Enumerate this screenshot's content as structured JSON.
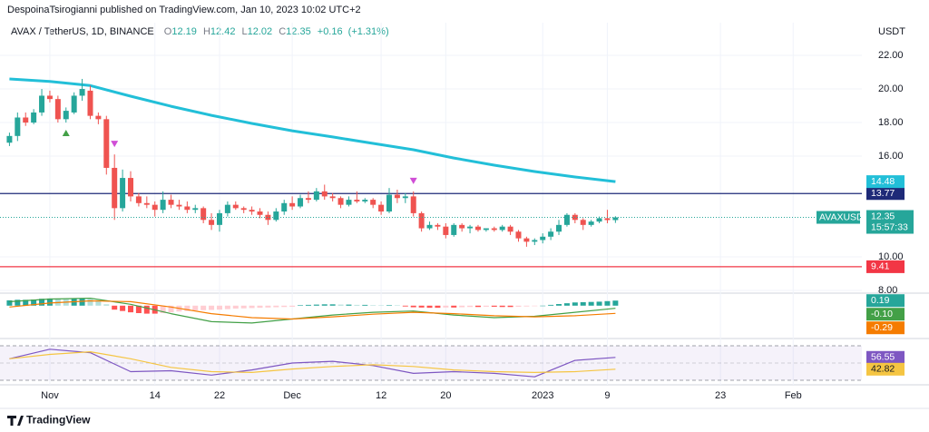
{
  "header": {
    "publisher": "DespoinaTsirogianni published on TradingView.com, Jan 10, 2023 10:02 UTC+2",
    "symbol": "AVAX / TetherUS, 1D, BINANCE",
    "o": "O",
    "h": "H",
    "l": "L",
    "c": "C",
    "change": {
      "value": 0.16,
      "label": "+0.16"
    },
    "change_pct": {
      "value": 1.31,
      "label": "(+1.31%)"
    }
  },
  "footer": {
    "brand": "TradingView"
  },
  "chart_data": {
    "type": "candlestick",
    "currency": "USDT",
    "symbol_tag": "AVAXUSDT",
    "countdown": "15:57:33",
    "colors": {
      "up": "#26a69a",
      "down": "#ef5350"
    },
    "candles": [
      [
        16.8,
        17.4,
        16.6,
        17.2
      ],
      [
        17.2,
        18.6,
        16.9,
        18.3
      ],
      [
        18.3,
        18.6,
        17.8,
        18.0
      ],
      [
        18.0,
        18.8,
        17.9,
        18.6
      ],
      [
        18.6,
        20.0,
        18.4,
        19.6
      ],
      [
        19.6,
        19.9,
        19.2,
        19.4
      ],
      [
        19.4,
        19.6,
        18.0,
        18.2
      ],
      [
        18.2,
        18.9,
        18.0,
        18.7
      ],
      [
        18.6,
        19.8,
        18.5,
        19.6
      ],
      [
        19.6,
        20.6,
        19.3,
        20.0
      ],
      [
        19.9,
        20.2,
        18.2,
        18.4
      ],
      [
        18.4,
        18.6,
        17.9,
        18.2
      ],
      [
        18.2,
        18.4,
        14.9,
        15.3
      ],
      [
        15.3,
        16.1,
        12.2,
        12.9
      ],
      [
        12.9,
        15.2,
        12.7,
        14.7
      ],
      [
        14.7,
        15.1,
        13.3,
        13.6
      ],
      [
        13.6,
        13.8,
        13.0,
        13.2
      ],
      [
        13.2,
        13.6,
        12.9,
        13.1
      ],
      [
        13.1,
        13.3,
        12.4,
        12.8
      ],
      [
        12.8,
        13.9,
        12.6,
        13.4
      ],
      [
        13.4,
        13.7,
        12.9,
        13.1
      ],
      [
        13.1,
        13.4,
        12.8,
        13.0
      ],
      [
        13.0,
        13.3,
        12.6,
        12.8
      ],
      [
        12.8,
        13.1,
        12.6,
        12.9
      ],
      [
        12.9,
        13.0,
        12.0,
        12.2
      ],
      [
        12.2,
        12.6,
        11.6,
        11.9
      ],
      [
        11.9,
        12.8,
        11.5,
        12.6
      ],
      [
        12.6,
        13.3,
        12.4,
        13.1
      ],
      [
        13.1,
        13.3,
        12.8,
        12.9
      ],
      [
        12.9,
        13.0,
        12.6,
        12.8
      ],
      [
        12.8,
        13.0,
        12.5,
        12.7
      ],
      [
        12.7,
        12.9,
        12.3,
        12.5
      ],
      [
        12.5,
        12.7,
        11.9,
        12.2
      ],
      [
        12.2,
        12.9,
        12.1,
        12.7
      ],
      [
        12.7,
        13.4,
        12.5,
        13.2
      ],
      [
        13.2,
        13.6,
        12.8,
        13.0
      ],
      [
        13.0,
        13.7,
        12.9,
        13.5
      ],
      [
        13.5,
        13.9,
        13.2,
        13.4
      ],
      [
        13.4,
        14.1,
        13.3,
        13.9
      ],
      [
        13.9,
        14.3,
        13.4,
        13.6
      ],
      [
        13.6,
        13.8,
        13.3,
        13.5
      ],
      [
        13.5,
        13.6,
        12.9,
        13.1
      ],
      [
        13.1,
        13.6,
        13.0,
        13.4
      ],
      [
        13.4,
        13.9,
        13.2,
        13.3
      ],
      [
        13.3,
        13.5,
        13.2,
        13.4
      ],
      [
        13.4,
        13.5,
        12.9,
        13.1
      ],
      [
        13.1,
        13.3,
        12.5,
        12.7
      ],
      [
        12.7,
        14.1,
        12.6,
        13.7
      ],
      [
        13.7,
        14.0,
        13.2,
        13.5
      ],
      [
        13.5,
        13.8,
        13.2,
        13.6
      ],
      [
        13.6,
        13.9,
        12.4,
        12.6
      ],
      [
        12.6,
        12.7,
        11.5,
        11.7
      ],
      [
        11.7,
        12.1,
        11.6,
        11.9
      ],
      [
        11.9,
        12.0,
        11.6,
        11.8
      ],
      [
        11.8,
        12.0,
        11.1,
        11.3
      ],
      [
        11.3,
        12.0,
        11.2,
        11.9
      ],
      [
        11.9,
        12.0,
        11.5,
        11.7
      ],
      [
        11.7,
        11.9,
        11.4,
        11.8
      ],
      [
        11.8,
        11.9,
        11.5,
        11.6
      ],
      [
        11.6,
        11.7,
        11.5,
        11.7
      ],
      [
        11.7,
        11.8,
        11.5,
        11.6
      ],
      [
        11.6,
        11.9,
        11.5,
        11.8
      ],
      [
        11.8,
        11.9,
        11.3,
        11.5
      ],
      [
        11.5,
        11.6,
        10.9,
        11.1
      ],
      [
        11.1,
        11.2,
        10.6,
        10.9
      ],
      [
        10.9,
        11.1,
        10.7,
        11.0
      ],
      [
        11.0,
        11.4,
        10.8,
        11.2
      ],
      [
        11.2,
        11.7,
        11.0,
        11.5
      ],
      [
        11.5,
        12.2,
        11.3,
        11.9
      ],
      [
        11.9,
        12.6,
        11.8,
        12.5
      ],
      [
        12.5,
        12.6,
        12.0,
        12.2
      ],
      [
        12.2,
        12.3,
        11.6,
        11.9
      ],
      [
        11.9,
        12.2,
        11.8,
        12.1
      ],
      [
        12.1,
        12.4,
        12.0,
        12.3
      ],
      [
        12.3,
        12.8,
        12.0,
        12.19
      ],
      [
        12.19,
        12.42,
        12.02,
        12.35
      ]
    ],
    "xlim": [
      -1.17,
      105.5
    ],
    "xticks": [
      {
        "value": 5,
        "label": "Nov"
      },
      {
        "value": 18,
        "label": "14"
      },
      {
        "value": 26,
        "label": "22"
      },
      {
        "value": 35,
        "label": "Dec"
      },
      {
        "value": 46,
        "label": "12"
      },
      {
        "value": 54,
        "label": "20"
      },
      {
        "value": 66,
        "label": "2023"
      },
      {
        "value": 74,
        "label": "9"
      },
      {
        "value": 88,
        "label": "23"
      },
      {
        "value": 97,
        "label": "Feb"
      }
    ],
    "ylim": [
      7.89,
      23.95
    ],
    "yticks": [
      {
        "value": 22,
        "label": "22.00"
      },
      {
        "value": 20,
        "label": "20.00"
      },
      {
        "value": 18,
        "label": "18.00"
      },
      {
        "value": 16,
        "label": "16.00"
      },
      {
        "value": 10,
        "label": "10.00"
      },
      {
        "value": 8,
        "label": "8.00"
      }
    ],
    "grid": true,
    "moving_average": {
      "color": "#22bfd8",
      "x": [
        0,
        5,
        10,
        15,
        20,
        25,
        30,
        35,
        40,
        45,
        50,
        55,
        60,
        65,
        70,
        75
      ],
      "values": [
        20.6,
        20.45,
        20.2,
        19.57,
        18.97,
        18.43,
        17.95,
        17.51,
        17.14,
        16.76,
        16.38,
        15.89,
        15.46,
        15.08,
        14.76,
        14.48
      ]
    },
    "levels": [
      {
        "value": 13.77,
        "color": "#1e2a78"
      },
      {
        "value": 9.41,
        "color": "#f23645"
      }
    ],
    "buy_signals": [
      7
    ],
    "sell_signals": [
      13,
      50
    ],
    "macd": {
      "ylim": [
        -1.2,
        0.47
      ],
      "colors": {
        "up_grow": "#26a69a",
        "up_fall": "#b2dfdb",
        "down_grow": "#ff5252",
        "down_fall": "#ffcdd2"
      },
      "histogram": [
        0.2,
        0.22,
        0.22,
        0.23,
        0.26,
        0.27,
        0.25,
        0.24,
        0.25,
        0.27,
        0.24,
        0.2,
        0.05,
        -0.15,
        -0.2,
        -0.25,
        -0.28,
        -0.3,
        -0.3,
        -0.28,
        -0.25,
        -0.22,
        -0.2,
        -0.18,
        -0.17,
        -0.16,
        -0.15,
        -0.13,
        -0.11,
        -0.1,
        -0.09,
        -0.08,
        -0.07,
        -0.06,
        -0.05,
        -0.04,
        0.02,
        0.03,
        0.04,
        0.05,
        0.05,
        0.04,
        0.04,
        0.03,
        0.03,
        0.02,
        0.01,
        0.02,
        0.01,
        -0.03,
        -0.06,
        -0.07,
        -0.08,
        -0.08,
        -0.07,
        -0.07,
        -0.06,
        -0.05,
        -0.05,
        -0.04,
        -0.04,
        -0.05,
        -0.05,
        -0.04,
        -0.03,
        -0.02,
        0.0,
        0.03,
        0.06,
        0.09,
        0.12,
        0.13,
        0.14,
        0.15,
        0.17,
        0.19
      ],
      "series": [
        {
          "color": "#43a047",
          "x": [
            0,
            5,
            10,
            15,
            20,
            25,
            30,
            35,
            40,
            45,
            50,
            55,
            60,
            65,
            70,
            75
          ],
          "values": [
            0.15,
            0.25,
            0.28,
            0.05,
            -0.3,
            -0.6,
            -0.65,
            -0.5,
            -0.35,
            -0.25,
            -0.2,
            -0.35,
            -0.45,
            -0.4,
            -0.25,
            -0.1
          ],
          "value_labels": [
            null,
            null,
            null,
            null,
            null,
            null,
            null,
            null,
            null,
            null,
            null,
            null,
            null,
            null,
            null,
            "-0.10"
          ]
        },
        {
          "color": "#f57c00",
          "x": [
            0,
            5,
            10,
            15,
            20,
            25,
            30,
            35,
            40,
            45,
            50,
            55,
            60,
            65,
            70,
            75
          ],
          "values": [
            -0.05,
            0.1,
            0.18,
            0.15,
            -0.05,
            -0.3,
            -0.45,
            -0.5,
            -0.42,
            -0.32,
            -0.25,
            -0.3,
            -0.38,
            -0.42,
            -0.38,
            -0.29
          ]
        }
      ]
    },
    "rsi": {
      "ylim": [
        28,
        76
      ],
      "levels": [
        70,
        50,
        30
      ],
      "band_color": "#7e57c2",
      "series": [
        {
          "color": "#7e57c2",
          "x": [
            0,
            5,
            10,
            15,
            20,
            25,
            30,
            35,
            40,
            45,
            50,
            55,
            60,
            65,
            70,
            75
          ],
          "values": [
            55,
            66,
            62,
            40,
            41,
            36,
            42,
            50,
            52,
            47,
            38,
            40,
            38,
            34,
            53,
            56.55
          ]
        },
        {
          "color": "#f5c542",
          "x": [
            0,
            5,
            10,
            15,
            20,
            25,
            30,
            35,
            40,
            45,
            50,
            55,
            60,
            65,
            70,
            75
          ],
          "values": [
            55,
            60,
            63,
            55,
            45,
            40,
            39,
            43,
            46,
            48,
            46,
            42,
            40,
            39,
            40,
            42.82
          ]
        }
      ]
    }
  }
}
